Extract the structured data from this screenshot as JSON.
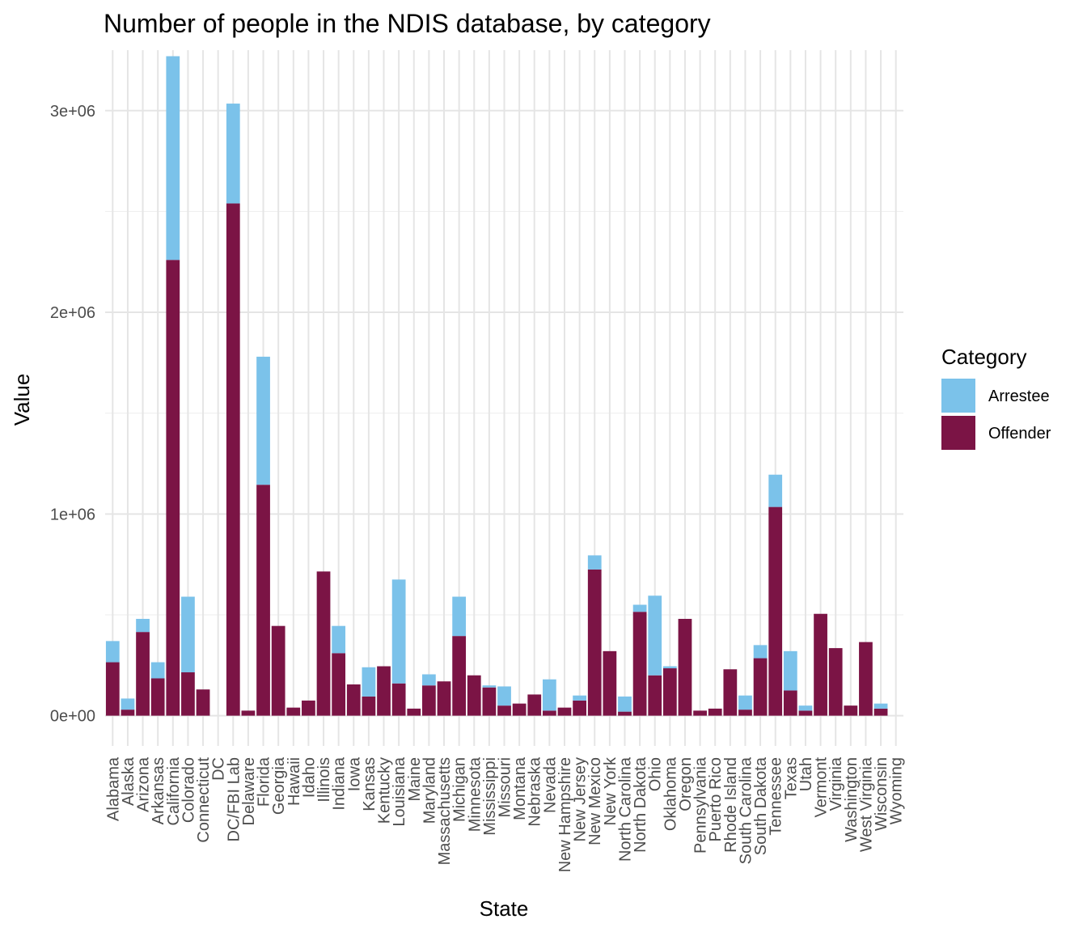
{
  "chart_data": {
    "type": "bar",
    "stacked": true,
    "title": "Number of people in the NDIS database, by category",
    "xlabel": "State",
    "ylabel": "Value",
    "ylim": [
      -150000,
      3300000
    ],
    "y_ticks": [
      0,
      1000000,
      2000000,
      3000000
    ],
    "y_tick_labels": [
      "0e+00",
      "1e+06",
      "2e+06",
      "3e+06"
    ],
    "grid": true,
    "legend": {
      "title": "Category",
      "position": "right"
    },
    "categories": [
      "Alabama",
      "Alaska",
      "Arizona",
      "Arkansas",
      "California",
      "Colorado",
      "Connecticut",
      "DC",
      "DC/FBI Lab",
      "Delaware",
      "Florida",
      "Georgia",
      "Hawaii",
      "Idaho",
      "Illinois",
      "Indiana",
      "Iowa",
      "Kansas",
      "Kentucky",
      "Louisiana",
      "Maine",
      "Maryland",
      "Massachusetts",
      "Michigan",
      "Minnesota",
      "Mississippi",
      "Missouri",
      "Montana",
      "Nebraska",
      "Nevada",
      "New Hampshire",
      "New Jersey",
      "New Mexico",
      "New York",
      "North Carolina",
      "North Dakota",
      "Ohio",
      "Oklahoma",
      "Oregon",
      "Pennsylvania",
      "Puerto Rico",
      "Rhode Island",
      "South Carolina",
      "South Dakota",
      "Tennessee",
      "Texas",
      "Utah",
      "Vermont",
      "Virginia",
      "Washington",
      "West Virginia",
      "Wisconsin",
      "Wyoming"
    ],
    "series": [
      {
        "name": "Offender",
        "color": "#7B1445",
        "values": [
          265000,
          30000,
          415000,
          185000,
          2260000,
          215000,
          130000,
          0,
          2540000,
          25000,
          1145000,
          445000,
          40000,
          75000,
          715000,
          310000,
          155000,
          95000,
          245000,
          160000,
          35000,
          150000,
          170000,
          395000,
          200000,
          140000,
          50000,
          60000,
          105000,
          25000,
          40000,
          75000,
          725000,
          320000,
          20000,
          515000,
          200000,
          235000,
          480000,
          25000,
          35000,
          230000,
          30000,
          285000,
          1035000,
          125000,
          25000,
          505000,
          335000,
          50000,
          365000,
          35000,
          0
        ]
      },
      {
        "name": "Arrestee",
        "color": "#7BC2EA",
        "values": [
          105000,
          55000,
          65000,
          80000,
          1010000,
          375000,
          0,
          0,
          495000,
          0,
          635000,
          0,
          0,
          0,
          0,
          135000,
          0,
          145000,
          0,
          515000,
          0,
          55000,
          0,
          195000,
          0,
          10000,
          95000,
          0,
          0,
          155000,
          0,
          25000,
          70000,
          0,
          75000,
          35000,
          395000,
          10000,
          0,
          0,
          0,
          0,
          70000,
          65000,
          160000,
          195000,
          25000,
          0,
          0,
          0,
          0,
          25000,
          0
        ]
      }
    ]
  }
}
